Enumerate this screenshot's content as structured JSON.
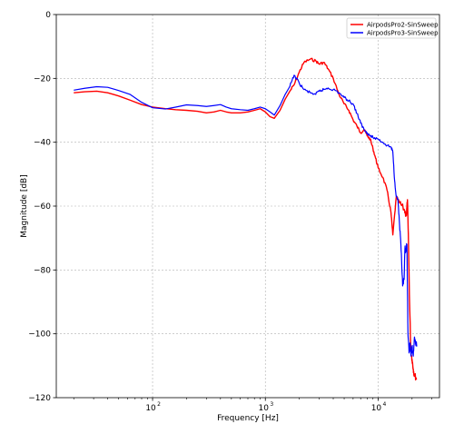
{
  "chart_data": {
    "type": "line",
    "title": "",
    "xlabel": "Frequency [Hz]",
    "ylabel": "Magnitude [dB]",
    "xscale": "log",
    "xlim": [
      14,
      35000
    ],
    "ylim": [
      -120,
      0
    ],
    "grid": true,
    "legend_position": "top-right",
    "xticks": [
      {
        "value": 100,
        "label": "10",
        "exp": "2"
      },
      {
        "value": 1000,
        "label": "10",
        "exp": "3"
      },
      {
        "value": 10000,
        "label": "10",
        "exp": "4"
      }
    ],
    "yticks": [
      {
        "value": 0,
        "label": "0"
      },
      {
        "value": -20,
        "label": "−20"
      },
      {
        "value": -40,
        "label": "−40"
      },
      {
        "value": -60,
        "label": "−60"
      },
      {
        "value": -80,
        "label": "−80"
      },
      {
        "value": -100,
        "label": "−100"
      },
      {
        "value": -120,
        "label": "−120"
      }
    ],
    "series": [
      {
        "name": "AirpodsPro2-SinSweep",
        "color": "#ff0000",
        "x": [
          20,
          25,
          32,
          40,
          50,
          63,
          80,
          100,
          130,
          160,
          200,
          250,
          300,
          350,
          400,
          450,
          500,
          600,
          700,
          800,
          900,
          1000,
          1100,
          1200,
          1350,
          1500,
          1650,
          1800,
          2000,
          2200,
          2500,
          2800,
          3000,
          3300,
          3600,
          4000,
          4500,
          5000,
          5500,
          6000,
          6500,
          7000,
          7500,
          8000,
          8500,
          9000,
          9500,
          10000,
          11000,
          12000,
          13000,
          13500,
          14500,
          15500,
          17000,
          17800,
          18200,
          18600,
          19000,
          19500,
          20000,
          20500,
          21000,
          22000
        ],
        "y": [
          -24.5,
          -24.2,
          -24.0,
          -24.5,
          -25.5,
          -26.8,
          -28.2,
          -29.0,
          -29.5,
          -29.8,
          -30.0,
          -30.3,
          -30.8,
          -30.5,
          -30.0,
          -30.5,
          -30.8,
          -30.8,
          -30.5,
          -30.0,
          -29.5,
          -30.5,
          -32.0,
          -32.5,
          -30.0,
          -26.5,
          -24.0,
          -22.0,
          -18.0,
          -15.0,
          -14.0,
          -14.5,
          -15.5,
          -15.0,
          -17.0,
          -20.0,
          -25.0,
          -28.0,
          -30.0,
          -33.0,
          -35.0,
          -37.0,
          -36.0,
          -38.0,
          -39.0,
          -42.0,
          -45.0,
          -48.0,
          -51.0,
          -55.0,
          -62.0,
          -69.0,
          -57.0,
          -59.0,
          -61.0,
          -63.0,
          -58.0,
          -72.0,
          -90.0,
          -105.0,
          -108.0,
          -111.0,
          -113.0,
          -114.0
        ]
      },
      {
        "name": "AirpodsPro3-SinSweep",
        "color": "#0000ff",
        "x": [
          20,
          25,
          32,
          40,
          50,
          63,
          80,
          100,
          130,
          160,
          200,
          250,
          300,
          350,
          400,
          450,
          500,
          600,
          700,
          800,
          900,
          1000,
          1100,
          1200,
          1350,
          1500,
          1650,
          1800,
          2000,
          2200,
          2500,
          2800,
          3000,
          3300,
          3600,
          4000,
          4500,
          5000,
          5500,
          6000,
          6500,
          7000,
          7500,
          8000,
          8500,
          9000,
          10000,
          11000,
          12000,
          13000,
          13500,
          14000,
          14500,
          15000,
          15500,
          16000,
          16500,
          17000,
          17300,
          17600,
          18000,
          18400,
          18800,
          19200,
          19600,
          20000,
          20500,
          21000,
          22000
        ],
        "y": [
          -23.7,
          -23.1,
          -22.6,
          -22.8,
          -23.8,
          -25.0,
          -27.5,
          -29.2,
          -29.6,
          -29.0,
          -28.3,
          -28.5,
          -28.8,
          -28.5,
          -28.2,
          -29.0,
          -29.5,
          -29.8,
          -30.0,
          -29.5,
          -29.0,
          -29.5,
          -30.5,
          -31.5,
          -28.5,
          -25.0,
          -22.5,
          -19.0,
          -21.5,
          -23.5,
          -24.5,
          -25.0,
          -24.0,
          -23.5,
          -23.0,
          -23.5,
          -24.5,
          -26.0,
          -27.0,
          -28.0,
          -31.0,
          -34.0,
          -36.0,
          -37.0,
          -38.0,
          -38.5,
          -39.0,
          -40.0,
          -41.0,
          -41.5,
          -43.0,
          -52.0,
          -57.0,
          -58.0,
          -66.0,
          -74.0,
          -85.0,
          -83.0,
          -73.0,
          -74.0,
          -72.0,
          -100.0,
          -106.0,
          -103.0,
          -107.0,
          -104.0,
          -107.0,
          -101.0,
          -104.0
        ]
      }
    ]
  }
}
